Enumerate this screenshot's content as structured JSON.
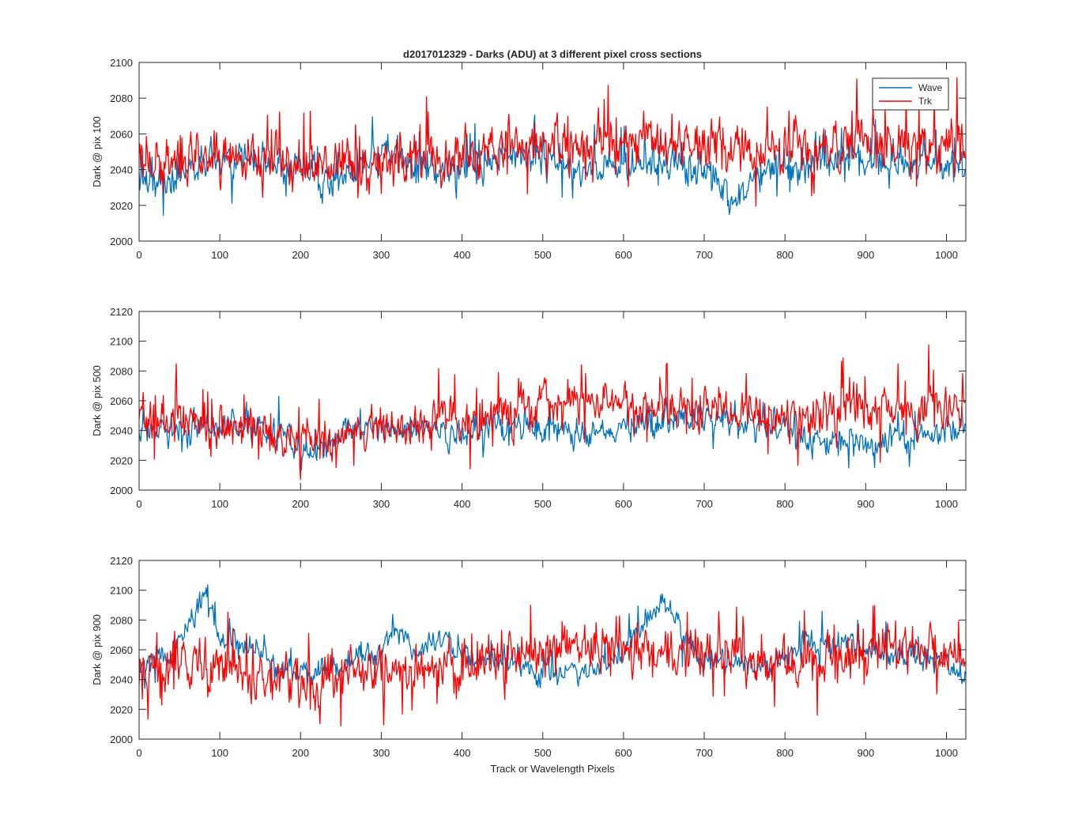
{
  "chart_data": [
    {
      "type": "line",
      "title": "d2017012329 - Darks (ADU) at 3 different pixel cross sections",
      "xlabel": "",
      "ylabel": "Dark @ pix 100",
      "xlim": [
        0,
        1024
      ],
      "ylim": [
        2000,
        2100
      ],
      "xticks": [
        0,
        100,
        200,
        300,
        400,
        500,
        600,
        700,
        800,
        900,
        1000
      ],
      "yticks": [
        2000,
        2020,
        2040,
        2060,
        2080,
        2100
      ],
      "legend": {
        "position": "top-right",
        "entries": [
          "Wave",
          "Trk"
        ]
      },
      "series": [
        {
          "name": "Wave",
          "color": "#0072BD",
          "anchors": [
            [
              0,
              2032
            ],
            [
              30,
              2032
            ],
            [
              60,
              2040
            ],
            [
              100,
              2045
            ],
            [
              140,
              2044
            ],
            [
              180,
              2042
            ],
            [
              220,
              2036
            ],
            [
              240,
              2030
            ],
            [
              260,
              2038
            ],
            [
              300,
              2050
            ],
            [
              340,
              2042
            ],
            [
              380,
              2040
            ],
            [
              420,
              2042
            ],
            [
              450,
              2050
            ],
            [
              500,
              2045
            ],
            [
              550,
              2040
            ],
            [
              600,
              2043
            ],
            [
              650,
              2042
            ],
            [
              700,
              2040
            ],
            [
              720,
              2030
            ],
            [
              740,
              2022
            ],
            [
              760,
              2033
            ],
            [
              800,
              2043
            ],
            [
              850,
              2044
            ],
            [
              900,
              2045
            ],
            [
              950,
              2045
            ],
            [
              1000,
              2043
            ],
            [
              1023,
              2042
            ]
          ],
          "noise": 6,
          "spikes": 0.06,
          "spike_size": 16,
          "samples": 1024
        },
        {
          "name": "Trk",
          "color": "#FF0000",
          "anchors": [
            [
              0,
              2045
            ],
            [
              100,
              2046
            ],
            [
              200,
              2041
            ],
            [
              250,
              2042
            ],
            [
              300,
              2044
            ],
            [
              380,
              2044
            ],
            [
              420,
              2052
            ],
            [
              500,
              2056
            ],
            [
              600,
              2057
            ],
            [
              700,
              2054
            ],
            [
              740,
              2049
            ],
            [
              800,
              2051
            ],
            [
              900,
              2055
            ],
            [
              1000,
              2054
            ],
            [
              1023,
              2056
            ]
          ],
          "noise": 9,
          "spikes": 0.07,
          "spike_size": 22,
          "samples": 1024
        }
      ]
    },
    {
      "type": "line",
      "title": "",
      "xlabel": "",
      "ylabel": "Dark @ pix 500",
      "xlim": [
        0,
        1024
      ],
      "ylim": [
        2000,
        2120
      ],
      "xticks": [
        0,
        100,
        200,
        300,
        400,
        500,
        600,
        700,
        800,
        900,
        1000
      ],
      "yticks": [
        2000,
        2020,
        2040,
        2060,
        2080,
        2100,
        2120
      ],
      "series": [
        {
          "name": "Wave",
          "color": "#0072BD",
          "anchors": [
            [
              0,
              2040
            ],
            [
              50,
              2040
            ],
            [
              100,
              2042
            ],
            [
              150,
              2043
            ],
            [
              180,
              2038
            ],
            [
              200,
              2025
            ],
            [
              220,
              2028
            ],
            [
              260,
              2038
            ],
            [
              300,
              2042
            ],
            [
              350,
              2040
            ],
            [
              400,
              2038
            ],
            [
              450,
              2043
            ],
            [
              500,
              2040
            ],
            [
              550,
              2040
            ],
            [
              600,
              2042
            ],
            [
              650,
              2045
            ],
            [
              700,
              2050
            ],
            [
              750,
              2045
            ],
            [
              800,
              2042
            ],
            [
              830,
              2032
            ],
            [
              860,
              2032
            ],
            [
              880,
              2033
            ],
            [
              900,
              2030
            ],
            [
              950,
              2035
            ],
            [
              1000,
              2040
            ],
            [
              1023,
              2042
            ]
          ],
          "noise": 6,
          "spikes": 0.05,
          "spike_size": 16,
          "samples": 1024
        },
        {
          "name": "Trk",
          "color": "#FF0000",
          "anchors": [
            [
              0,
              2050
            ],
            [
              100,
              2044
            ],
            [
              200,
              2034
            ],
            [
              300,
              2040
            ],
            [
              400,
              2048
            ],
            [
              500,
              2057
            ],
            [
              600,
              2058
            ],
            [
              700,
              2054
            ],
            [
              800,
              2048
            ],
            [
              900,
              2055
            ],
            [
              1000,
              2056
            ],
            [
              1023,
              2054
            ]
          ],
          "noise": 9,
          "spikes": 0.07,
          "spike_size": 24,
          "samples": 1024
        }
      ]
    },
    {
      "type": "line",
      "title": "",
      "xlabel": "Track or Wavelength Pixels",
      "ylabel": "Dark @ pix 900",
      "xlim": [
        0,
        1024
      ],
      "ylim": [
        2000,
        2120
      ],
      "xticks": [
        0,
        100,
        200,
        300,
        400,
        500,
        600,
        700,
        800,
        900,
        1000
      ],
      "yticks": [
        2000,
        2020,
        2040,
        2060,
        2080,
        2100,
        2120
      ],
      "series": [
        {
          "name": "Wave",
          "color": "#0072BD",
          "anchors": [
            [
              0,
              2048
            ],
            [
              40,
              2058
            ],
            [
              70,
              2085
            ],
            [
              85,
              2098
            ],
            [
              100,
              2068
            ],
            [
              140,
              2062
            ],
            [
              180,
              2046
            ],
            [
              220,
              2044
            ],
            [
              260,
              2050
            ],
            [
              300,
              2060
            ],
            [
              320,
              2075
            ],
            [
              340,
              2055
            ],
            [
              380,
              2070
            ],
            [
              400,
              2055
            ],
            [
              450,
              2052
            ],
            [
              500,
              2045
            ],
            [
              550,
              2044
            ],
            [
              600,
              2058
            ],
            [
              630,
              2082
            ],
            [
              650,
              2094
            ],
            [
              670,
              2075
            ],
            [
              700,
              2050
            ],
            [
              750,
              2048
            ],
            [
              800,
              2052
            ],
            [
              820,
              2064
            ],
            [
              850,
              2066
            ],
            [
              900,
              2060
            ],
            [
              950,
              2056
            ],
            [
              1000,
              2050
            ],
            [
              1023,
              2042
            ]
          ],
          "noise": 5,
          "spikes": 0.05,
          "spike_size": 14,
          "samples": 1024
        },
        {
          "name": "Trk",
          "color": "#FF0000",
          "anchors": [
            [
              0,
              2046
            ],
            [
              100,
              2046
            ],
            [
              200,
              2040
            ],
            [
              300,
              2044
            ],
            [
              400,
              2046
            ],
            [
              500,
              2060
            ],
            [
              600,
              2060
            ],
            [
              700,
              2056
            ],
            [
              800,
              2052
            ],
            [
              900,
              2058
            ],
            [
              1000,
              2058
            ],
            [
              1023,
              2055
            ]
          ],
          "noise": 10,
          "spikes": 0.08,
          "spike_size": 24,
          "samples": 1024
        }
      ]
    }
  ]
}
